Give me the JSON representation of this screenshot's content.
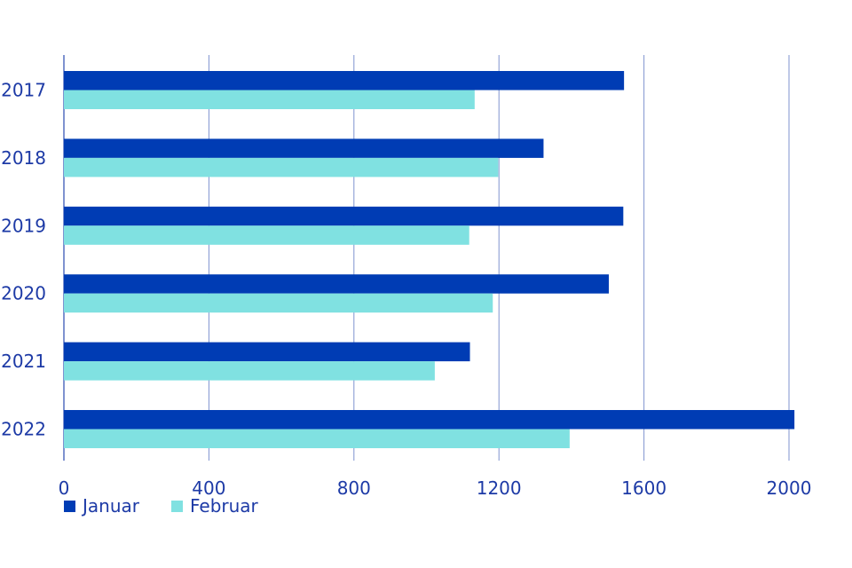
{
  "chart_data": {
    "type": "bar",
    "orientation": "horizontal",
    "categories": [
      "2017",
      "2018",
      "2019",
      "2020",
      "2021",
      "2022"
    ],
    "series": [
      {
        "name": "Januar",
        "color": "#003cb4",
        "values": [
          1545,
          1323,
          1543,
          1503,
          1120,
          2015
        ]
      },
      {
        "name": "Februar",
        "color": "#80e1e1",
        "values": [
          1133,
          1198,
          1118,
          1183,
          1023,
          1395
        ]
      }
    ],
    "xticks": [
      "0",
      "400",
      "800",
      "1200",
      "1600",
      "2000"
    ],
    "xlim": [
      0,
      2000
    ],
    "grid": true,
    "legend_position": "bottom-left"
  }
}
